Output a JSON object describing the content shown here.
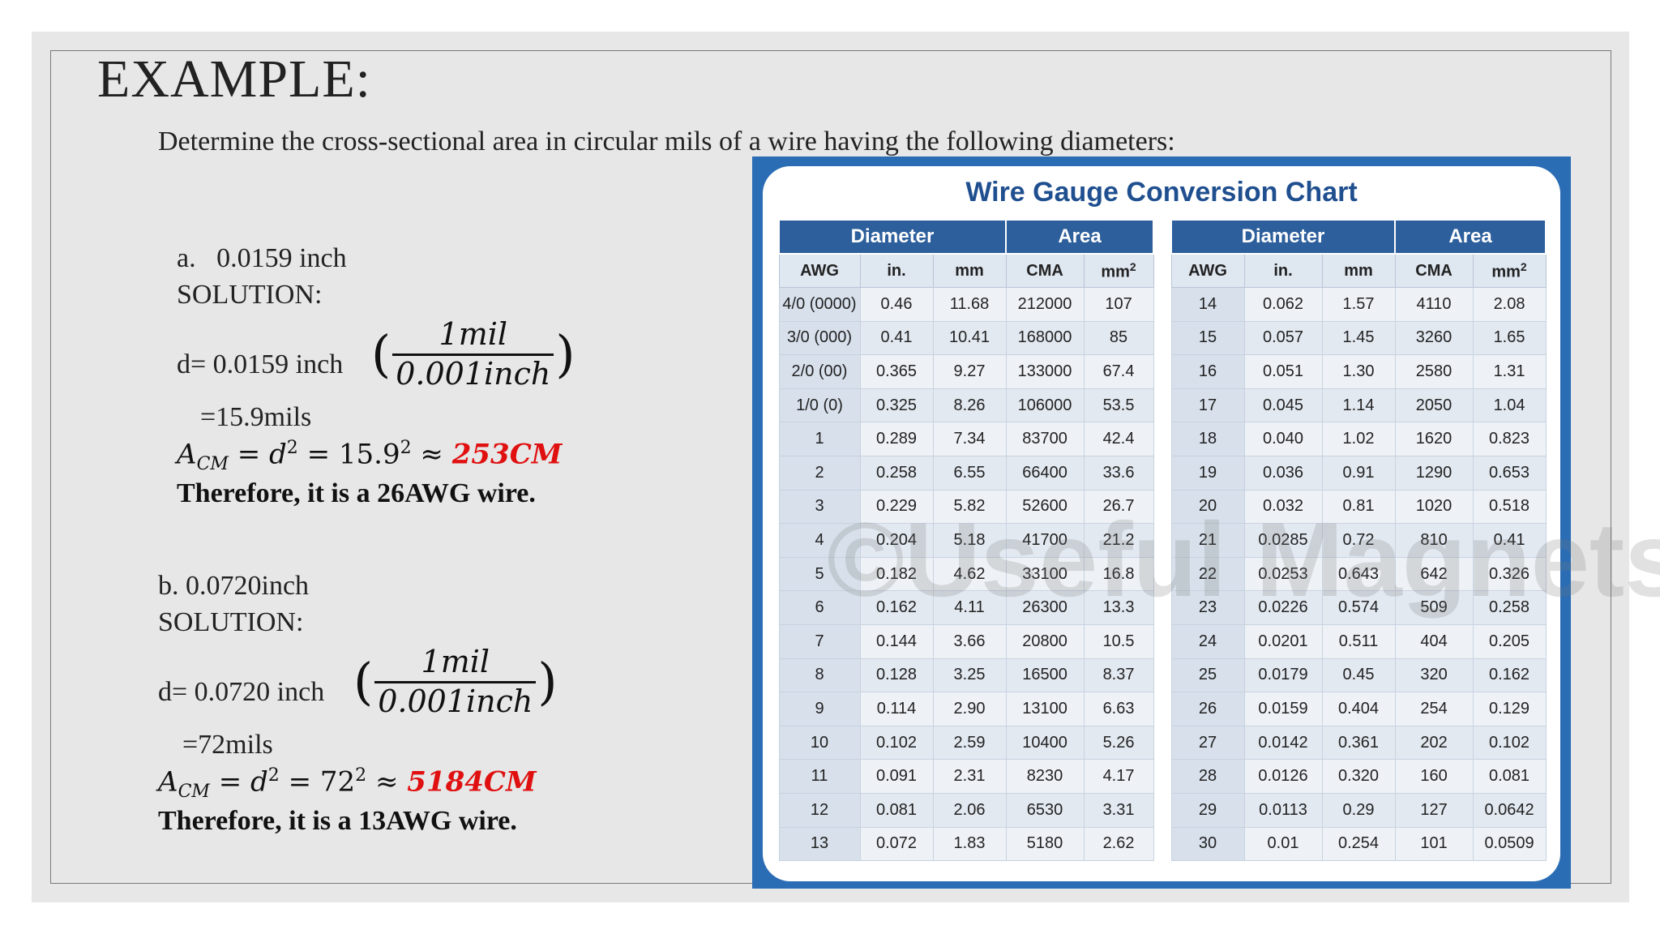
{
  "slide": {
    "title": "EXAMPLE:",
    "question": "Determine the cross-sectional area in circular mils of a wire having the following diameters:"
  },
  "part_a": {
    "label": "a.",
    "value": "0.0159 inch",
    "solution": "SOLUTION:",
    "d_prefix": "d= 0.0159 inch",
    "frac_num": "1mil",
    "frac_den": "0.001inch",
    "mils": "=15.9mils",
    "area_expr": "= 15.9",
    "area_result": "253CM",
    "conclusion": "Therefore, it is a 26AWG wire."
  },
  "part_b": {
    "label": "b. 0.0720inch",
    "solution": "SOLUTION:",
    "d_prefix": "d= 0.0720 inch",
    "frac_num": "1mil",
    "frac_den": "0.001inch",
    "mils": "=72mils",
    "area_expr": "= 72",
    "area_result": "5184CM",
    "conclusion": "Therefore, it is a 13AWG wire."
  },
  "chart": {
    "title": "Wire Gauge Conversion Chart",
    "group_diameter": "Diameter",
    "group_area": "Area",
    "col_awg": "AWG",
    "col_in": "in.",
    "col_mm": "mm",
    "col_cma": "CMA",
    "col_mm2": "mm",
    "watermark": "©Useful Magnets",
    "left_rows": [
      [
        "4/0 (0000)",
        "0.46",
        "11.68",
        "212000",
        "107"
      ],
      [
        "3/0 (000)",
        "0.41",
        "10.41",
        "168000",
        "85"
      ],
      [
        "2/0 (00)",
        "0.365",
        "9.27",
        "133000",
        "67.4"
      ],
      [
        "1/0 (0)",
        "0.325",
        "8.26",
        "106000",
        "53.5"
      ],
      [
        "1",
        "0.289",
        "7.34",
        "83700",
        "42.4"
      ],
      [
        "2",
        "0.258",
        "6.55",
        "66400",
        "33.6"
      ],
      [
        "3",
        "0.229",
        "5.82",
        "52600",
        "26.7"
      ],
      [
        "4",
        "0.204",
        "5.18",
        "41700",
        "21.2"
      ],
      [
        "5",
        "0.182",
        "4.62",
        "33100",
        "16.8"
      ],
      [
        "6",
        "0.162",
        "4.11",
        "26300",
        "13.3"
      ],
      [
        "7",
        "0.144",
        "3.66",
        "20800",
        "10.5"
      ],
      [
        "8",
        "0.128",
        "3.25",
        "16500",
        "8.37"
      ],
      [
        "9",
        "0.114",
        "2.90",
        "13100",
        "6.63"
      ],
      [
        "10",
        "0.102",
        "2.59",
        "10400",
        "5.26"
      ],
      [
        "11",
        "0.091",
        "2.31",
        "8230",
        "4.17"
      ],
      [
        "12",
        "0.081",
        "2.06",
        "6530",
        "3.31"
      ],
      [
        "13",
        "0.072",
        "1.83",
        "5180",
        "2.62"
      ]
    ],
    "right_rows": [
      [
        "14",
        "0.062",
        "1.57",
        "4110",
        "2.08"
      ],
      [
        "15",
        "0.057",
        "1.45",
        "3260",
        "1.65"
      ],
      [
        "16",
        "0.051",
        "1.30",
        "2580",
        "1.31"
      ],
      [
        "17",
        "0.045",
        "1.14",
        "2050",
        "1.04"
      ],
      [
        "18",
        "0.040",
        "1.02",
        "1620",
        "0.823"
      ],
      [
        "19",
        "0.036",
        "0.91",
        "1290",
        "0.653"
      ],
      [
        "20",
        "0.032",
        "0.81",
        "1020",
        "0.518"
      ],
      [
        "21",
        "0.0285",
        "0.72",
        "810",
        "0.41"
      ],
      [
        "22",
        "0.0253",
        "0.643",
        "642",
        "0.326"
      ],
      [
        "23",
        "0.0226",
        "0.574",
        "509",
        "0.258"
      ],
      [
        "24",
        "0.0201",
        "0.511",
        "404",
        "0.205"
      ],
      [
        "25",
        "0.0179",
        "0.45",
        "320",
        "0.162"
      ],
      [
        "26",
        "0.0159",
        "0.404",
        "254",
        "0.129"
      ],
      [
        "27",
        "0.0142",
        "0.361",
        "202",
        "0.102"
      ],
      [
        "28",
        "0.0126",
        "0.320",
        "160",
        "0.081"
      ],
      [
        "29",
        "0.0113",
        "0.29",
        "127",
        "0.0642"
      ],
      [
        "30",
        "0.01",
        "0.254",
        "101",
        "0.0509"
      ]
    ]
  }
}
